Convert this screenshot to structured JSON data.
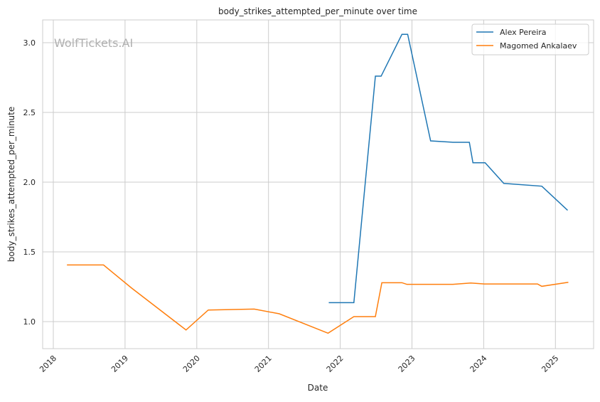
{
  "chart_data": {
    "type": "line",
    "title": "body_strikes_attempted_per_minute over time",
    "xlabel": "Date",
    "ylabel": "body_strikes_attempted_per_minute",
    "xlim": [
      2017.85,
      2025.5
    ],
    "ylim": [
      0.81,
      3.16
    ],
    "x_ticks": [
      2018,
      2019,
      2020,
      2021,
      2022,
      2023,
      2024,
      2025
    ],
    "x_tick_labels": [
      "2018",
      "2019",
      "2020",
      "2021",
      "2022",
      "2023",
      "2024",
      "2025"
    ],
    "y_ticks": [
      1.0,
      1.5,
      2.0,
      2.5,
      3.0
    ],
    "y_tick_labels": [
      "1.0",
      "1.5",
      "2.0",
      "2.5",
      "3.0"
    ],
    "grid": true,
    "legend_position": "top-right",
    "watermark": "WolfTickets.AI",
    "series": [
      {
        "name": "Alex Pereira",
        "color": "#1f77b4",
        "points": [
          [
            2021.84,
            1.136
          ],
          [
            2022.19,
            1.136
          ],
          [
            2022.49,
            2.76
          ],
          [
            2022.57,
            2.76
          ],
          [
            2022.86,
            3.06
          ],
          [
            2022.94,
            3.06
          ],
          [
            2023.26,
            2.296
          ],
          [
            2023.57,
            2.286
          ],
          [
            2023.8,
            2.286
          ],
          [
            2023.85,
            2.139
          ],
          [
            2024.02,
            2.139
          ],
          [
            2024.28,
            1.991
          ],
          [
            2024.81,
            1.971
          ],
          [
            2025.17,
            1.798
          ]
        ]
      },
      {
        "name": "Magomed Ankalaev",
        "color": "#ff7f0e",
        "points": [
          [
            2018.19,
            1.406
          ],
          [
            2018.7,
            1.406
          ],
          [
            2019.09,
            1.241
          ],
          [
            2019.85,
            0.94
          ],
          [
            2020.16,
            1.083
          ],
          [
            2020.8,
            1.09
          ],
          [
            2021.15,
            1.056
          ],
          [
            2021.83,
            0.917
          ],
          [
            2022.19,
            1.036
          ],
          [
            2022.49,
            1.036
          ],
          [
            2022.58,
            1.279
          ],
          [
            2022.86,
            1.279
          ],
          [
            2022.93,
            1.267
          ],
          [
            2023.57,
            1.267
          ],
          [
            2023.82,
            1.277
          ],
          [
            2024.01,
            1.27
          ],
          [
            2024.75,
            1.27
          ],
          [
            2024.81,
            1.253
          ],
          [
            2025.18,
            1.282
          ]
        ]
      }
    ]
  }
}
